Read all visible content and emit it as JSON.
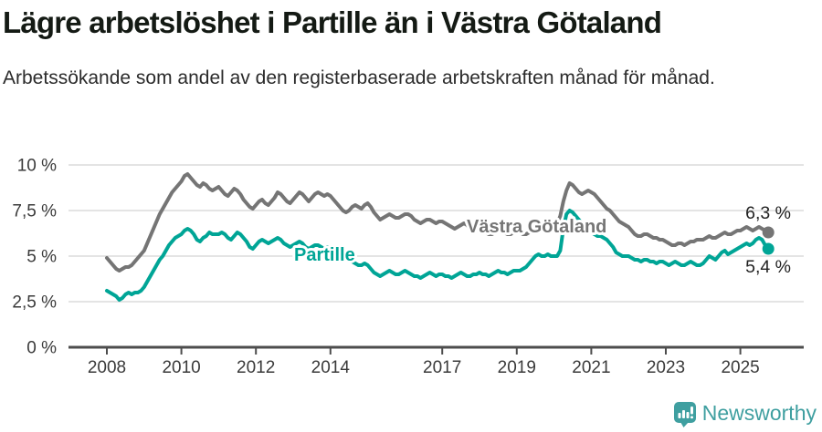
{
  "header": {
    "title": "Lägre arbetslöshet i Partille än i Västra Götaland",
    "subtitle": "Arbetssökande som andel av den registerbaserade arbetskraften månad för månad."
  },
  "chart_data": {
    "type": "line",
    "title": "Lägre arbetslöshet i Partille än i Västra Götaland",
    "subtitle": "Arbetssökande som andel av den registerbaserade arbetskraften månad för månad.",
    "unit": "%",
    "x_unit": "month",
    "x_start": "2008-01",
    "x_end": "2025-10",
    "ylim": [
      0,
      10
    ],
    "grid": true,
    "legend_position": "inline-labels",
    "y_ticks": [
      {
        "value": 10,
        "label": "10 %"
      },
      {
        "value": 7.5,
        "label": "7,5 %"
      },
      {
        "value": 5,
        "label": "5 %"
      },
      {
        "value": 2.5,
        "label": "2,5 %"
      },
      {
        "value": 0,
        "label": "0 %"
      }
    ],
    "x_ticks": [
      {
        "year": 2008,
        "label": "2008"
      },
      {
        "year": 2010,
        "label": "2010"
      },
      {
        "year": 2012,
        "label": "2012"
      },
      {
        "year": 2014,
        "label": "2014"
      },
      {
        "year": 2017,
        "label": "2017"
      },
      {
        "year": 2019,
        "label": "2019"
      },
      {
        "year": 2021,
        "label": "2021"
      },
      {
        "year": 2023,
        "label": "2023"
      },
      {
        "year": 2025,
        "label": "2025"
      }
    ],
    "series": [
      {
        "name": "Västra Götaland",
        "color": "#757575",
        "end_value": 6.3,
        "end_value_label": "6,3 %",
        "values": [
          4.9,
          4.7,
          4.5,
          4.3,
          4.2,
          4.3,
          4.4,
          4.4,
          4.5,
          4.7,
          4.9,
          5.1,
          5.3,
          5.7,
          6.1,
          6.5,
          6.9,
          7.3,
          7.6,
          7.9,
          8.2,
          8.5,
          8.7,
          8.9,
          9.1,
          9.4,
          9.5,
          9.3,
          9.1,
          8.9,
          8.8,
          9.0,
          8.9,
          8.7,
          8.6,
          8.7,
          8.8,
          8.6,
          8.4,
          8.3,
          8.5,
          8.7,
          8.6,
          8.4,
          8.1,
          7.9,
          7.7,
          7.6,
          7.8,
          8.0,
          8.1,
          7.9,
          7.8,
          8.0,
          8.2,
          8.5,
          8.4,
          8.2,
          8.0,
          7.9,
          8.1,
          8.3,
          8.5,
          8.4,
          8.2,
          8.0,
          8.2,
          8.4,
          8.5,
          8.4,
          8.3,
          8.4,
          8.3,
          8.1,
          7.9,
          7.7,
          7.5,
          7.4,
          7.5,
          7.7,
          7.8,
          7.7,
          7.6,
          7.8,
          7.9,
          7.7,
          7.4,
          7.2,
          7.0,
          7.1,
          7.2,
          7.3,
          7.2,
          7.1,
          7.1,
          7.2,
          7.3,
          7.3,
          7.2,
          7.0,
          6.9,
          6.8,
          6.9,
          7.0,
          7.0,
          6.9,
          6.8,
          6.9,
          6.9,
          6.8,
          6.7,
          6.6,
          6.5,
          6.6,
          6.7,
          6.8,
          6.7,
          6.5,
          6.4,
          6.4,
          6.5,
          6.4,
          6.3,
          6.2,
          6.2,
          6.3,
          6.4,
          6.4,
          6.3,
          6.2,
          6.2,
          6.3,
          6.4,
          6.3,
          6.2,
          6.2,
          6.3,
          6.4,
          6.5,
          6.5,
          6.4,
          6.4,
          6.5,
          6.6,
          6.7,
          6.8,
          7.2,
          8.0,
          8.6,
          9.0,
          8.9,
          8.7,
          8.5,
          8.4,
          8.5,
          8.6,
          8.5,
          8.4,
          8.2,
          8.0,
          7.8,
          7.6,
          7.5,
          7.3,
          7.1,
          6.9,
          6.8,
          6.7,
          6.6,
          6.4,
          6.2,
          6.1,
          6.1,
          6.2,
          6.2,
          6.1,
          6.0,
          6.0,
          5.9,
          5.9,
          5.8,
          5.7,
          5.6,
          5.6,
          5.7,
          5.7,
          5.6,
          5.7,
          5.8,
          5.8,
          5.9,
          5.9,
          5.9,
          6.0,
          6.1,
          6.0,
          6.0,
          6.1,
          6.2,
          6.3,
          6.2,
          6.2,
          6.3,
          6.4,
          6.4,
          6.5,
          6.6,
          6.5,
          6.4,
          6.5,
          6.6,
          6.5,
          6.4,
          6.3
        ]
      },
      {
        "name": "Partille",
        "color": "#00a596",
        "end_value": 5.4,
        "end_value_label": "5,4 %",
        "values": [
          3.1,
          3.0,
          2.9,
          2.8,
          2.6,
          2.7,
          2.9,
          3.0,
          2.9,
          3.0,
          3.0,
          3.1,
          3.3,
          3.6,
          3.9,
          4.2,
          4.5,
          4.8,
          5.0,
          5.3,
          5.6,
          5.8,
          6.0,
          6.1,
          6.2,
          6.4,
          6.5,
          6.4,
          6.2,
          5.9,
          5.8,
          6.0,
          6.1,
          6.3,
          6.2,
          6.2,
          6.2,
          6.3,
          6.2,
          6.0,
          5.9,
          6.1,
          6.3,
          6.2,
          6.0,
          5.8,
          5.5,
          5.4,
          5.6,
          5.8,
          5.9,
          5.8,
          5.7,
          5.8,
          5.9,
          6.0,
          5.9,
          5.7,
          5.6,
          5.5,
          5.6,
          5.7,
          5.8,
          5.7,
          5.5,
          5.4,
          5.5,
          5.6,
          5.6,
          5.5,
          5.4,
          5.5,
          5.4,
          5.3,
          5.2,
          5.1,
          5.0,
          4.9,
          4.8,
          4.7,
          4.6,
          4.5,
          4.5,
          4.6,
          4.5,
          4.3,
          4.1,
          4.0,
          3.9,
          4.0,
          4.1,
          4.2,
          4.1,
          4.0,
          4.0,
          4.1,
          4.2,
          4.1,
          4.0,
          3.9,
          3.9,
          3.8,
          3.9,
          4.0,
          4.1,
          4.0,
          3.9,
          4.0,
          4.0,
          3.9,
          3.9,
          3.8,
          3.9,
          4.0,
          4.1,
          4.0,
          3.9,
          3.9,
          4.0,
          4.0,
          4.1,
          4.0,
          4.0,
          3.9,
          4.0,
          4.1,
          4.2,
          4.1,
          4.1,
          4.0,
          4.1,
          4.2,
          4.2,
          4.2,
          4.3,
          4.4,
          4.6,
          4.8,
          5.0,
          5.1,
          5.0,
          5.0,
          5.1,
          5.0,
          5.0,
          5.0,
          5.3,
          6.5,
          7.3,
          7.5,
          7.4,
          7.2,
          7.0,
          6.8,
          6.6,
          6.4,
          6.3,
          6.2,
          6.1,
          6.1,
          6.0,
          5.9,
          5.7,
          5.5,
          5.2,
          5.1,
          5.0,
          5.0,
          5.0,
          4.9,
          4.8,
          4.8,
          4.7,
          4.8,
          4.8,
          4.7,
          4.7,
          4.6,
          4.7,
          4.7,
          4.6,
          4.5,
          4.6,
          4.7,
          4.6,
          4.5,
          4.5,
          4.6,
          4.7,
          4.6,
          4.5,
          4.5,
          4.6,
          4.8,
          5.0,
          4.9,
          4.8,
          5.0,
          5.2,
          5.3,
          5.1,
          5.2,
          5.3,
          5.4,
          5.5,
          5.6,
          5.7,
          5.6,
          5.7,
          5.9,
          6.0,
          5.9,
          5.6,
          5.4
        ]
      }
    ],
    "colors": {
      "grid": "#dcdcdc",
      "axis": "#4d4d4d",
      "tick_label": "#3a3a3a",
      "end_label": "#222222"
    }
  },
  "footer": {
    "brand": "Newsworthy",
    "brand_color": "#3f9fa0",
    "icon": "newsworthy-chart-bubble-icon"
  }
}
